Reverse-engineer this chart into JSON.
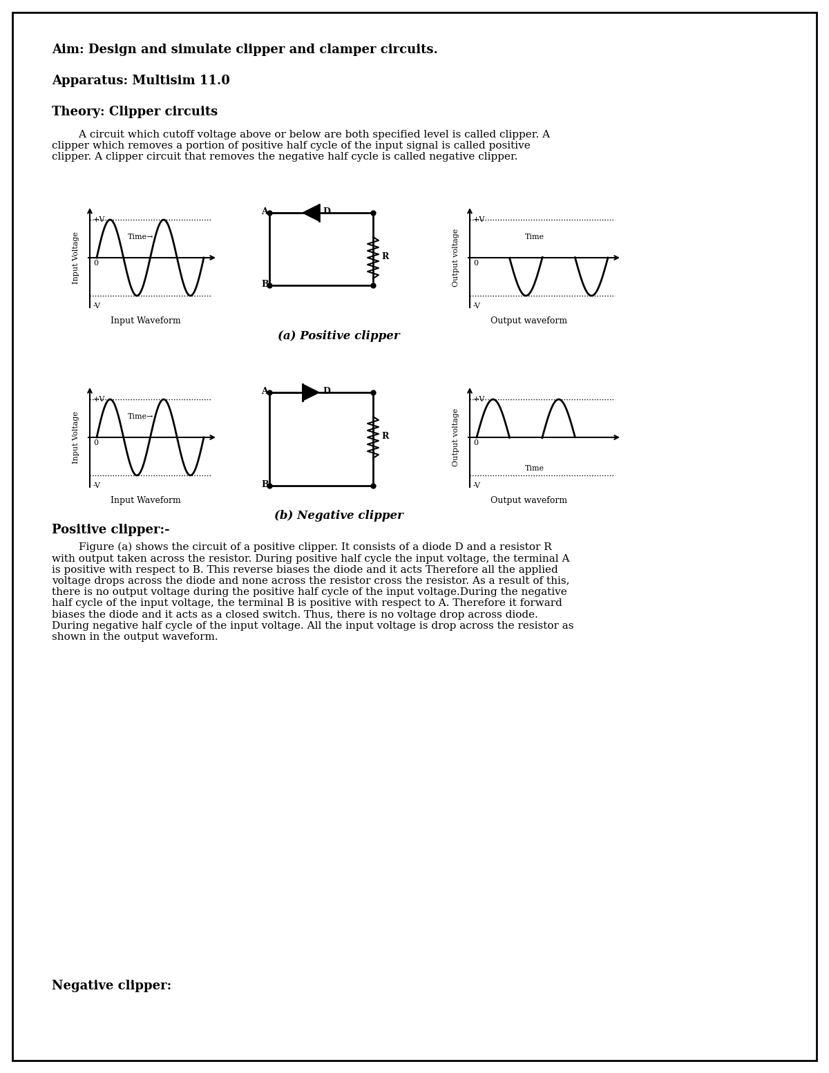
{
  "page_bg": "#ffffff",
  "border_color": "#000000",
  "text_color": "#000000",
  "title_aim": "Aim: Design and simulate clipper and clamper circuits.",
  "title_apparatus": "Apparatus: Multisim 11.0",
  "title_theory": "Theory: Clipper circuits",
  "theory_para": "        A circuit which cutoff voltage above or below are both specified level is called clipper. A\nclipper which removes a portion of positive half cycle of the input signal is called positive\nclipper. A clipper circuit that removes the negative half cycle is called negative clipper.",
  "caption_a": "(a) Positive clipper",
  "caption_b": "(b) Negative clipper",
  "positive_clipper_heading": "Positive clipper:-",
  "positive_clipper_text": "        Figure (a) shows the circuit of a positive clipper. It consists of a diode D and a resistor R\nwith output taken across the resistor. During positive half cycle the input voltage, the terminal A\nis positive with respect to B. This reverse biases the diode and it acts Therefore all the applied\nvoltage drops across the diode and none across the resistor cross the resistor. As a result of this,\nthere is no output voltage during the positive half cycle of the input voltage.During the negative\nhalf cycle of the input voltage, the terminal B is positive with respect to A. Therefore it forward\nbiases the diode and it acts as a closed switch. Thus, there is no voltage drop across diode.\nDuring negative half cycle of the input voltage. All the input voltage is drop across the resistor as\nshown in the output waveform.",
  "negative_clipper_heading": "Negative clipper:"
}
